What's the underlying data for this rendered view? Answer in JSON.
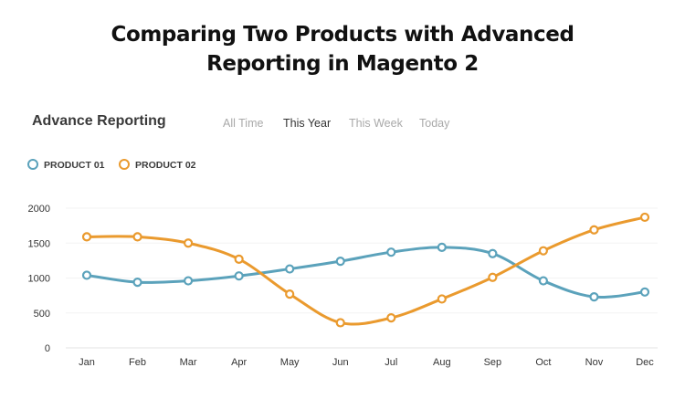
{
  "page": {
    "title_line1": "Comparing Two Products with Advanced",
    "title_line2": "Reporting in Magento 2"
  },
  "card": {
    "title": "Advance Reporting"
  },
  "tabs": [
    {
      "label": "All Time",
      "active": false
    },
    {
      "label": "This Year",
      "active": true
    },
    {
      "label": "This Week",
      "active": false
    },
    {
      "label": "Today",
      "active": false
    }
  ],
  "legend": [
    {
      "label": "PRODUCT 01",
      "color": "#5ba2bb"
    },
    {
      "label": "PRODUCT 02",
      "color": "#ea9a2e"
    }
  ],
  "chart_data": {
    "type": "line",
    "title": "Advance Reporting",
    "categories": [
      "Jan",
      "Feb",
      "Mar",
      "Apr",
      "May",
      "Jun",
      "Jul",
      "Aug",
      "Sep",
      "Oct",
      "Nov",
      "Dec"
    ],
    "series": [
      {
        "name": "PRODUCT 01",
        "color": "#5ba2bb",
        "values": [
          1040,
          940,
          960,
          1030,
          1130,
          1240,
          1370,
          1440,
          1350,
          960,
          730,
          800
        ]
      },
      {
        "name": "PRODUCT 02",
        "color": "#ea9a2e",
        "values": [
          1590,
          1590,
          1500,
          1270,
          770,
          360,
          430,
          700,
          1010,
          1390,
          1690,
          1870
        ]
      }
    ],
    "y_ticks": [
      "0",
      "500",
      "1000",
      "1500",
      "2000"
    ],
    "ylim": [
      0,
      2000
    ],
    "xlabel": "",
    "ylabel": "",
    "grid": true
  }
}
